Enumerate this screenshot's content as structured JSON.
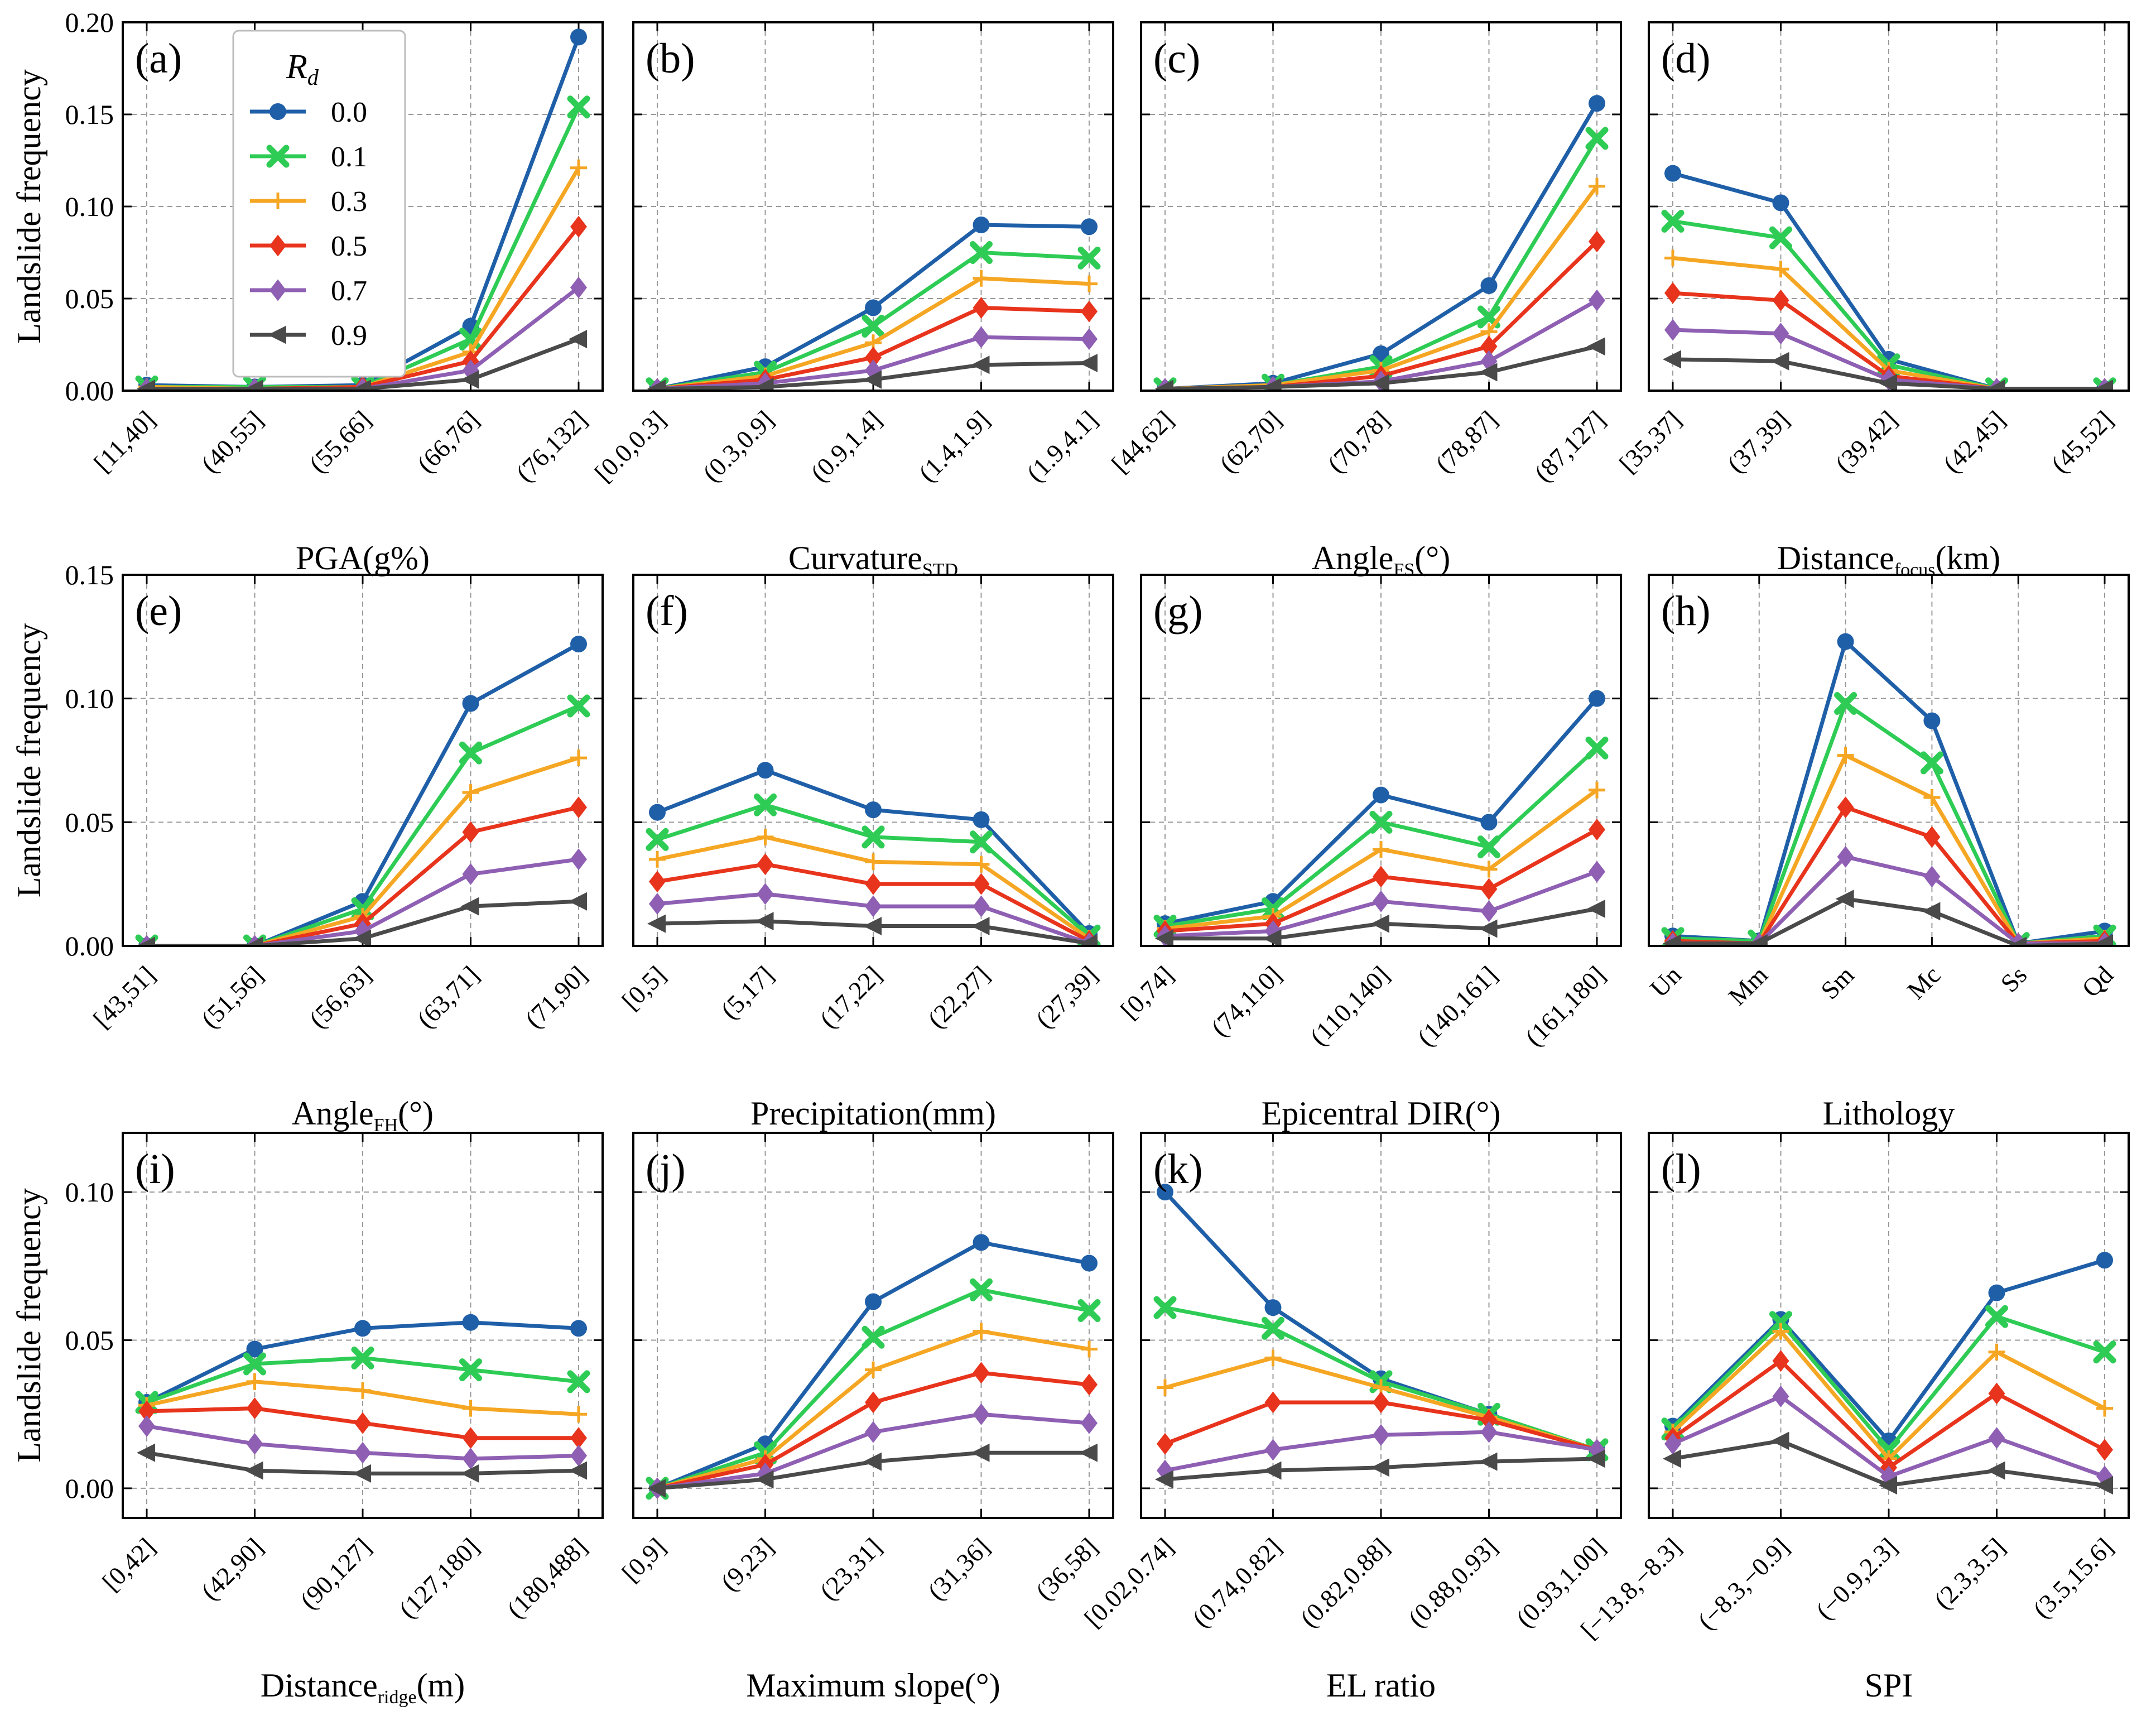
{
  "figure": {
    "ylabel": "Landslide frequency",
    "legend": {
      "title": "R",
      "title_sub": "d",
      "entries": [
        "0.0",
        "0.1",
        "0.3",
        "0.5",
        "0.7",
        "0.9"
      ]
    }
  },
  "series_colors": [
    "#1f5fa8",
    "#2ecc55",
    "#f5a623",
    "#e8341c",
    "#8e5fb3",
    "#4a4a4a"
  ],
  "series_markers": [
    "circle",
    "x-filled",
    "plus",
    "diamond",
    "diamond",
    "tri-left"
  ],
  "chart_data": [
    {
      "type": "line",
      "panel_label": "(a)",
      "xlabel": {
        "main": "PGA(g%)",
        "sub": "",
        "tail": ""
      },
      "categories": [
        "[11,40]",
        "(40,55]",
        "(55,66]",
        "(66,76]",
        "(76,132]"
      ],
      "ylim": [
        0,
        0.2
      ],
      "yticks": [
        "0.00",
        "0.05",
        "0.10",
        "0.15",
        "0.20"
      ],
      "series": [
        {
          "name": "0.0",
          "values": [
            0.003,
            0.002,
            0.003,
            0.035,
            0.192
          ]
        },
        {
          "name": "0.1",
          "values": [
            0.002,
            0.002,
            0.002,
            0.028,
            0.154
          ]
        },
        {
          "name": "0.3",
          "values": [
            0.002,
            0.001,
            0.002,
            0.021,
            0.121
          ]
        },
        {
          "name": "0.5",
          "values": [
            0.001,
            0.001,
            0.002,
            0.016,
            0.089
          ]
        },
        {
          "name": "0.7",
          "values": [
            0.001,
            0.001,
            0.001,
            0.011,
            0.056
          ]
        },
        {
          "name": "0.9",
          "values": [
            0.001,
            0.001,
            0.001,
            0.006,
            0.028
          ]
        }
      ]
    },
    {
      "type": "line",
      "panel_label": "(b)",
      "xlabel": {
        "main": "Curvature",
        "sub": "STD",
        "tail": ""
      },
      "categories": [
        "[0.0,0.3]",
        "(0.3,0.9]",
        "(0.9,1.4]",
        "(1.4,1.9]",
        "(1.9,4.1]"
      ],
      "ylim": [
        0,
        0.2
      ],
      "yticks": [],
      "series": [
        {
          "name": "0.0",
          "values": [
            0.001,
            0.013,
            0.045,
            0.09,
            0.089
          ]
        },
        {
          "name": "0.1",
          "values": [
            0.001,
            0.01,
            0.035,
            0.075,
            0.072
          ]
        },
        {
          "name": "0.3",
          "values": [
            0.001,
            0.008,
            0.026,
            0.061,
            0.058
          ]
        },
        {
          "name": "0.5",
          "values": [
            0.001,
            0.006,
            0.018,
            0.045,
            0.043
          ]
        },
        {
          "name": "0.7",
          "values": [
            0.001,
            0.004,
            0.011,
            0.029,
            0.028
          ]
        },
        {
          "name": "0.9",
          "values": [
            0.001,
            0.002,
            0.006,
            0.014,
            0.015
          ]
        }
      ]
    },
    {
      "type": "line",
      "panel_label": "(c)",
      "xlabel": {
        "main": "Angle",
        "sub": "FS",
        "tail": "(°)"
      },
      "categories": [
        "[44,62]",
        "(62,70]",
        "(70,78]",
        "(78,87]",
        "(87,127]"
      ],
      "ylim": [
        0,
        0.2
      ],
      "yticks": [],
      "series": [
        {
          "name": "0.0",
          "values": [
            0.001,
            0.004,
            0.02,
            0.057,
            0.156
          ]
        },
        {
          "name": "0.1",
          "values": [
            0.001,
            0.003,
            0.013,
            0.04,
            0.137
          ]
        },
        {
          "name": "0.3",
          "values": [
            0.001,
            0.003,
            0.011,
            0.032,
            0.111
          ]
        },
        {
          "name": "0.5",
          "values": [
            0.001,
            0.002,
            0.008,
            0.024,
            0.081
          ]
        },
        {
          "name": "0.7",
          "values": [
            0.001,
            0.002,
            0.005,
            0.016,
            0.049
          ]
        },
        {
          "name": "0.9",
          "values": [
            0.001,
            0.002,
            0.004,
            0.01,
            0.024
          ]
        }
      ]
    },
    {
      "type": "line",
      "panel_label": "(d)",
      "xlabel": {
        "main": "Distance",
        "sub": "focus",
        "tail": "(km)"
      },
      "categories": [
        "[35,37]",
        "(37,39]",
        "(39,42]",
        "(42,45]",
        "(45,52]"
      ],
      "ylim": [
        0,
        0.2
      ],
      "yticks": [],
      "series": [
        {
          "name": "0.0",
          "values": [
            0.118,
            0.102,
            0.017,
            0.001,
            0.001
          ]
        },
        {
          "name": "0.1",
          "values": [
            0.092,
            0.083,
            0.014,
            0.001,
            0.001
          ]
        },
        {
          "name": "0.3",
          "values": [
            0.072,
            0.066,
            0.011,
            0.001,
            0.001
          ]
        },
        {
          "name": "0.5",
          "values": [
            0.053,
            0.049,
            0.008,
            0.001,
            0.001
          ]
        },
        {
          "name": "0.7",
          "values": [
            0.033,
            0.031,
            0.006,
            0.001,
            0.001
          ]
        },
        {
          "name": "0.9",
          "values": [
            0.017,
            0.016,
            0.004,
            0.001,
            0.001
          ]
        }
      ]
    },
    {
      "type": "line",
      "panel_label": "(e)",
      "xlabel": {
        "main": "Angle",
        "sub": "FH",
        "tail": "(°)"
      },
      "categories": [
        "[43,51]",
        "(51,56]",
        "(56,63]",
        "(63,71]",
        "(71,90]"
      ],
      "ylim": [
        0,
        0.15
      ],
      "yticks": [
        "0.00",
        "0.05",
        "0.10",
        "0.15"
      ],
      "series": [
        {
          "name": "0.0",
          "values": [
            0.0,
            0.0,
            0.018,
            0.098,
            0.122
          ]
        },
        {
          "name": "0.1",
          "values": [
            0.0,
            0.0,
            0.015,
            0.078,
            0.097
          ]
        },
        {
          "name": "0.3",
          "values": [
            0.0,
            0.0,
            0.012,
            0.062,
            0.076
          ]
        },
        {
          "name": "0.5",
          "values": [
            0.0,
            0.0,
            0.009,
            0.046,
            0.056
          ]
        },
        {
          "name": "0.7",
          "values": [
            0.0,
            0.0,
            0.006,
            0.029,
            0.035
          ]
        },
        {
          "name": "0.9",
          "values": [
            0.0,
            0.0,
            0.003,
            0.016,
            0.018
          ]
        }
      ]
    },
    {
      "type": "line",
      "panel_label": "(f)",
      "xlabel": {
        "main": "Precipitation(mm)",
        "sub": "",
        "tail": ""
      },
      "categories": [
        "[0,5]",
        "(5,17]",
        "(17,22]",
        "(22,27]",
        "(27,39]"
      ],
      "ylim": [
        0,
        0.15
      ],
      "yticks": [],
      "series": [
        {
          "name": "0.0",
          "values": [
            0.054,
            0.071,
            0.055,
            0.051,
            0.005
          ]
        },
        {
          "name": "0.1",
          "values": [
            0.043,
            0.057,
            0.044,
            0.042,
            0.004
          ]
        },
        {
          "name": "0.3",
          "values": [
            0.035,
            0.044,
            0.034,
            0.033,
            0.003
          ]
        },
        {
          "name": "0.5",
          "values": [
            0.026,
            0.033,
            0.025,
            0.025,
            0.002
          ]
        },
        {
          "name": "0.7",
          "values": [
            0.017,
            0.021,
            0.016,
            0.016,
            0.001
          ]
        },
        {
          "name": "0.9",
          "values": [
            0.009,
            0.01,
            0.008,
            0.008,
            0.001
          ]
        }
      ]
    },
    {
      "type": "line",
      "panel_label": "(g)",
      "xlabel": {
        "main": "Epicentral DIR(°)",
        "sub": "",
        "tail": ""
      },
      "categories": [
        "[0,74]",
        "(74,110]",
        "(110,140]",
        "(140,161]",
        "(161,180]"
      ],
      "ylim": [
        0,
        0.15
      ],
      "yticks": [],
      "series": [
        {
          "name": "0.0",
          "values": [
            0.009,
            0.018,
            0.061,
            0.05,
            0.1
          ]
        },
        {
          "name": "0.1",
          "values": [
            0.008,
            0.015,
            0.05,
            0.04,
            0.08
          ]
        },
        {
          "name": "0.3",
          "values": [
            0.007,
            0.012,
            0.039,
            0.031,
            0.063
          ]
        },
        {
          "name": "0.5",
          "values": [
            0.006,
            0.009,
            0.028,
            0.023,
            0.047
          ]
        },
        {
          "name": "0.7",
          "values": [
            0.004,
            0.006,
            0.018,
            0.014,
            0.03
          ]
        },
        {
          "name": "0.9",
          "values": [
            0.003,
            0.003,
            0.009,
            0.007,
            0.015
          ]
        }
      ]
    },
    {
      "type": "line",
      "panel_label": "(h)",
      "xlabel": {
        "main": "Lithology",
        "sub": "",
        "tail": ""
      },
      "categories": [
        "Un",
        "Mm",
        "Sm",
        "Mc",
        "Ss",
        "Qd"
      ],
      "ylim": [
        0,
        0.15
      ],
      "yticks": [],
      "series": [
        {
          "name": "0.0",
          "values": [
            0.004,
            0.002,
            0.123,
            0.091,
            0.001,
            0.006
          ]
        },
        {
          "name": "0.1",
          "values": [
            0.003,
            0.002,
            0.098,
            0.074,
            0.001,
            0.004
          ]
        },
        {
          "name": "0.3",
          "values": [
            0.002,
            0.001,
            0.077,
            0.06,
            0.001,
            0.003
          ]
        },
        {
          "name": "0.5",
          "values": [
            0.002,
            0.001,
            0.056,
            0.044,
            0.001,
            0.002
          ]
        },
        {
          "name": "0.7",
          "values": [
            0.001,
            0.001,
            0.036,
            0.028,
            0.001,
            0.001
          ]
        },
        {
          "name": "0.9",
          "values": [
            0.001,
            0.001,
            0.019,
            0.014,
            0.0,
            0.001
          ]
        }
      ]
    },
    {
      "type": "line",
      "panel_label": "(i)",
      "xlabel": {
        "main": "Distance",
        "sub": "ridge",
        "tail": "(m)"
      },
      "categories": [
        "[0,42]",
        "(42,90]",
        "(90,127]",
        "(127,180]",
        "(180,488]"
      ],
      "ylim": [
        -0.01,
        0.12
      ],
      "yticks": [
        "0.00",
        "0.05",
        "0.10"
      ],
      "series": [
        {
          "name": "0.0",
          "values": [
            0.029,
            0.047,
            0.054,
            0.056,
            0.054
          ]
        },
        {
          "name": "0.1",
          "values": [
            0.029,
            0.042,
            0.044,
            0.04,
            0.036
          ]
        },
        {
          "name": "0.3",
          "values": [
            0.028,
            0.036,
            0.033,
            0.027,
            0.025
          ]
        },
        {
          "name": "0.5",
          "values": [
            0.026,
            0.027,
            0.022,
            0.017,
            0.017
          ]
        },
        {
          "name": "0.7",
          "values": [
            0.021,
            0.015,
            0.012,
            0.01,
            0.011
          ]
        },
        {
          "name": "0.9",
          "values": [
            0.012,
            0.006,
            0.005,
            0.005,
            0.006
          ]
        }
      ]
    },
    {
      "type": "line",
      "panel_label": "(j)",
      "xlabel": {
        "main": "Maximum slope(°)",
        "sub": "",
        "tail": ""
      },
      "categories": [
        "[0,9]",
        "(9,23]",
        "(23,31]",
        "(31,36]",
        "(36,58]"
      ],
      "ylim": [
        -0.01,
        0.12
      ],
      "yticks": [],
      "series": [
        {
          "name": "0.0",
          "values": [
            0.0,
            0.015,
            0.063,
            0.083,
            0.076
          ]
        },
        {
          "name": "0.1",
          "values": [
            0.0,
            0.012,
            0.051,
            0.067,
            0.06
          ]
        },
        {
          "name": "0.3",
          "values": [
            0.0,
            0.01,
            0.04,
            0.053,
            0.047
          ]
        },
        {
          "name": "0.5",
          "values": [
            0.0,
            0.008,
            0.029,
            0.039,
            0.035
          ]
        },
        {
          "name": "0.7",
          "values": [
            0.0,
            0.005,
            0.019,
            0.025,
            0.022
          ]
        },
        {
          "name": "0.9",
          "values": [
            0.0,
            0.003,
            0.009,
            0.012,
            0.012
          ]
        }
      ]
    },
    {
      "type": "line",
      "panel_label": "(k)",
      "xlabel": {
        "main": "EL ratio",
        "sub": "",
        "tail": ""
      },
      "categories": [
        "[0.02,0.74]",
        "(0.74,0.82]",
        "(0.82,0.88]",
        "(0.88,0.93]",
        "(0.93,1.00]"
      ],
      "ylim": [
        -0.01,
        0.12
      ],
      "yticks": [],
      "series": [
        {
          "name": "0.0",
          "values": [
            0.1,
            0.061,
            0.037,
            0.025,
            0.013
          ]
        },
        {
          "name": "0.1",
          "values": [
            0.061,
            0.054,
            0.036,
            0.025,
            0.013
          ]
        },
        {
          "name": "0.3",
          "values": [
            0.034,
            0.044,
            0.034,
            0.024,
            0.013
          ]
        },
        {
          "name": "0.5",
          "values": [
            0.015,
            0.029,
            0.029,
            0.023,
            0.013
          ]
        },
        {
          "name": "0.7",
          "values": [
            0.006,
            0.013,
            0.018,
            0.019,
            0.013
          ]
        },
        {
          "name": "0.9",
          "values": [
            0.003,
            0.006,
            0.007,
            0.009,
            0.01
          ]
        }
      ]
    },
    {
      "type": "line",
      "panel_label": "(l)",
      "xlabel": {
        "main": "SPI",
        "sub": "",
        "tail": ""
      },
      "categories": [
        "[−13.8,−8.3]",
        "(−8.3,−0.9]",
        "(−0.9,2.3]",
        "(2.3,3.5]",
        "(3.5,15.6]"
      ],
      "ylim": [
        -0.01,
        0.12
      ],
      "yticks": [],
      "series": [
        {
          "name": "0.0",
          "values": [
            0.021,
            0.057,
            0.016,
            0.066,
            0.077
          ]
        },
        {
          "name": "0.1",
          "values": [
            0.02,
            0.056,
            0.013,
            0.058,
            0.046
          ]
        },
        {
          "name": "0.3",
          "values": [
            0.019,
            0.053,
            0.01,
            0.046,
            0.027
          ]
        },
        {
          "name": "0.5",
          "values": [
            0.017,
            0.043,
            0.007,
            0.032,
            0.013
          ]
        },
        {
          "name": "0.7",
          "values": [
            0.015,
            0.031,
            0.004,
            0.017,
            0.004
          ]
        },
        {
          "name": "0.9",
          "values": [
            0.01,
            0.016,
            0.001,
            0.006,
            0.001
          ]
        }
      ]
    }
  ]
}
